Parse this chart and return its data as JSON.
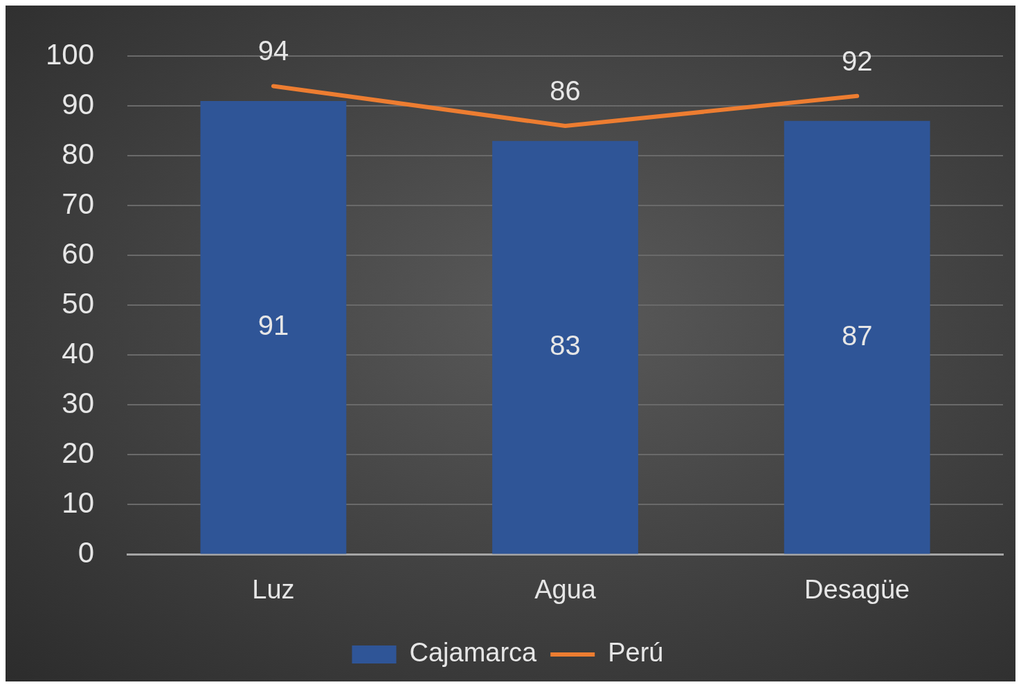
{
  "chart_data": {
    "type": "bar",
    "categories": [
      "Luz",
      "Agua",
      "Desagüe"
    ],
    "series": [
      {
        "name": "Cajamarca",
        "color": "#2f5597",
        "values": [
          91,
          83,
          87
        ]
      },
      {
        "name": "Perú",
        "type": "line",
        "color": "#ed7d31",
        "values": [
          94,
          86,
          92
        ]
      }
    ],
    "ylim": [
      0,
      100
    ],
    "yticks": [
      0,
      10,
      20,
      30,
      40,
      50,
      60,
      70,
      80,
      90,
      100
    ],
    "grid": "y",
    "legend": "bottom",
    "data_labels": true,
    "marker": "none"
  }
}
